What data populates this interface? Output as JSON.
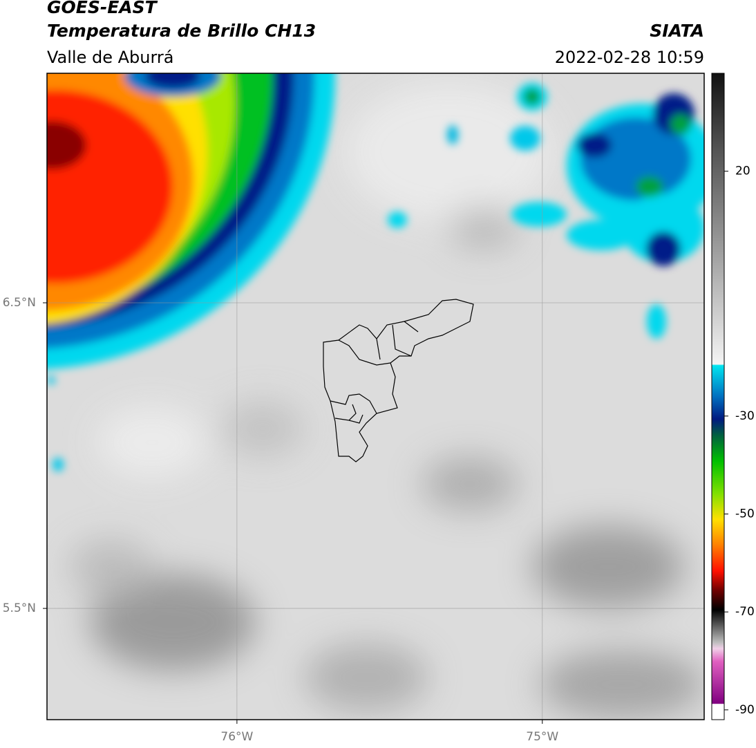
{
  "header": {
    "title": "GOES-EAST",
    "subtitle": "Temperatura de Brillo CH13",
    "region": "Valle de Aburrá",
    "source": "SIATA",
    "datetime": "2022-02-28 10:59"
  },
  "map": {
    "lat_range": [
      5.136,
      7.251
    ],
    "lon_range": [
      -76.622,
      -74.47
    ],
    "lat_ticks": [
      {
        "value": 6.5,
        "label": "6.5°N"
      },
      {
        "value": 5.5,
        "label": "5.5°N"
      }
    ],
    "lon_ticks": [
      {
        "value": -76,
        "label": "76°W"
      },
      {
        "value": -75,
        "label": "75°W"
      }
    ]
  },
  "colorbar": {
    "range": [
      -92,
      40
    ],
    "ticks": [
      20,
      -30,
      -50,
      -70,
      -90
    ]
  }
}
